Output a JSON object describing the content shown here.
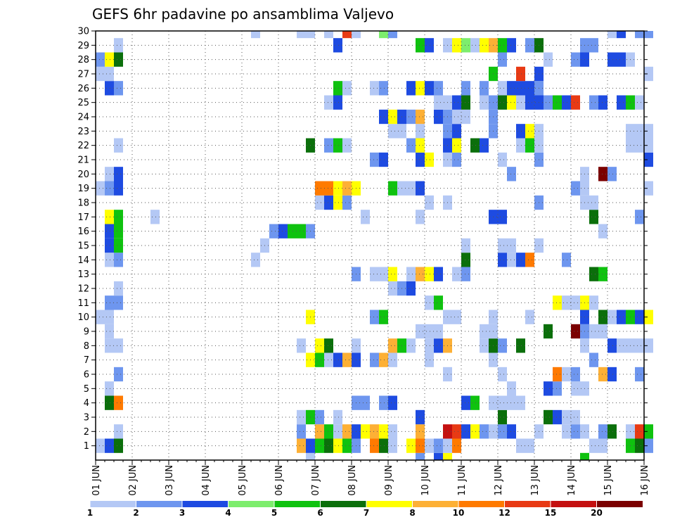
{
  "chart_data": {
    "type": "heatmap",
    "title": "GEFS 6hr padavine po ansamblima Valjevo",
    "xlabel": "",
    "ylabel": "",
    "y_members": [
      1,
      30
    ],
    "y_ticks": [
      "1",
      "2",
      "3",
      "4",
      "5",
      "6",
      "7",
      "8",
      "9",
      "10",
      "11",
      "12",
      "13",
      "14",
      "15",
      "16",
      "17",
      "18",
      "19",
      "20",
      "21",
      "22",
      "23",
      "24",
      "25",
      "26",
      "27",
      "28",
      "29",
      "30"
    ],
    "x_ticks": [
      "01 JUN",
      "02 JUN",
      "03 JUN",
      "04 JUN",
      "05 JUN",
      "06 JUN",
      "07 JUN",
      "08 JUN",
      "09 JUN",
      "10 JUN",
      "11 JUN",
      "12 JUN",
      "13 JUN",
      "14 JUN",
      "15 JUN",
      "16 JUN"
    ],
    "time_steps": 61,
    "steps_per_day": 4,
    "grid": true,
    "legend": {
      "position": "bottom",
      "labels": [
        "1",
        "2",
        "3",
        "4",
        "5",
        "6",
        "7",
        "8",
        "10",
        "12",
        "15",
        "20"
      ],
      "colors": [
        "#b4c8f5",
        "#6e96ef",
        "#1e4be1",
        "#7ded6d",
        "#0fc20f",
        "#0b6f0b",
        "#ffff00",
        "#fdb035",
        "#ff7a00",
        "#e83a14",
        "#c41010",
        "#7b0000"
      ]
    },
    "cells_by_member": {
      "30": [
        [
          17,
          1
        ],
        [
          22,
          1
        ],
        [
          23,
          1
        ],
        [
          25,
          1
        ],
        [
          27,
          10
        ],
        [
          28,
          1
        ],
        [
          31,
          4
        ],
        [
          32,
          2
        ],
        [
          56,
          1
        ],
        [
          57,
          3
        ],
        [
          59,
          2
        ],
        [
          60,
          2
        ]
      ],
      "29": [
        [
          2,
          1
        ],
        [
          26,
          3
        ],
        [
          35,
          5
        ],
        [
          36,
          3
        ],
        [
          38,
          1
        ],
        [
          39,
          7
        ],
        [
          40,
          4
        ],
        [
          41,
          1
        ],
        [
          42,
          7
        ],
        [
          43,
          8
        ],
        [
          44,
          5
        ],
        [
          45,
          3
        ],
        [
          47,
          2
        ],
        [
          48,
          6
        ],
        [
          53,
          2
        ],
        [
          54,
          2
        ]
      ],
      "28": [
        [
          0,
          2
        ],
        [
          1,
          7
        ],
        [
          2,
          6
        ],
        [
          44,
          2
        ],
        [
          49,
          1
        ],
        [
          52,
          2
        ],
        [
          53,
          3
        ],
        [
          56,
          3
        ],
        [
          57,
          3
        ],
        [
          58,
          1
        ]
      ],
      "27": [
        [
          0,
          1
        ],
        [
          1,
          1
        ],
        [
          43,
          5
        ],
        [
          46,
          10
        ],
        [
          48,
          3
        ],
        [
          60,
          1
        ]
      ],
      "26": [
        [
          1,
          3
        ],
        [
          2,
          2
        ],
        [
          26,
          5
        ],
        [
          27,
          1
        ],
        [
          30,
          1
        ],
        [
          31,
          2
        ],
        [
          34,
          3
        ],
        [
          35,
          7
        ],
        [
          36,
          3
        ],
        [
          37,
          2
        ],
        [
          40,
          2
        ],
        [
          42,
          2
        ],
        [
          44,
          1
        ],
        [
          45,
          3
        ],
        [
          46,
          3
        ],
        [
          47,
          3
        ],
        [
          48,
          2
        ]
      ],
      "25": [
        [
          25,
          1
        ],
        [
          26,
          3
        ],
        [
          37,
          1
        ],
        [
          38,
          1
        ],
        [
          39,
          3
        ],
        [
          40,
          6
        ],
        [
          42,
          1
        ],
        [
          43,
          2
        ],
        [
          44,
          6
        ],
        [
          45,
          7
        ],
        [
          46,
          1
        ],
        [
          47,
          3
        ],
        [
          48,
          3
        ],
        [
          49,
          2
        ],
        [
          50,
          5
        ],
        [
          51,
          3
        ],
        [
          52,
          10
        ],
        [
          54,
          2
        ],
        [
          55,
          3
        ],
        [
          57,
          3
        ],
        [
          58,
          5
        ],
        [
          59,
          1
        ]
      ],
      "24": [
        [
          31,
          3
        ],
        [
          32,
          7
        ],
        [
          33,
          3
        ],
        [
          34,
          2
        ],
        [
          35,
          8
        ],
        [
          37,
          3
        ],
        [
          38,
          2
        ],
        [
          39,
          1
        ],
        [
          40,
          1
        ],
        [
          43,
          2
        ]
      ],
      "23": [
        [
          32,
          1
        ],
        [
          33,
          1
        ],
        [
          35,
          1
        ],
        [
          38,
          2
        ],
        [
          39,
          3
        ],
        [
          43,
          2
        ],
        [
          46,
          3
        ],
        [
          47,
          7
        ],
        [
          48,
          1
        ],
        [
          58,
          1
        ],
        [
          59,
          1
        ],
        [
          60,
          1
        ]
      ],
      "22": [
        [
          2,
          1
        ],
        [
          23,
          6
        ],
        [
          25,
          2
        ],
        [
          26,
          5
        ],
        [
          27,
          1
        ],
        [
          34,
          2
        ],
        [
          35,
          7
        ],
        [
          38,
          3
        ],
        [
          39,
          7
        ],
        [
          41,
          6
        ],
        [
          42,
          3
        ],
        [
          46,
          1
        ],
        [
          47,
          5
        ],
        [
          48,
          1
        ],
        [
          58,
          1
        ],
        [
          59,
          1
        ],
        [
          60,
          1
        ]
      ],
      "21": [
        [
          30,
          2
        ],
        [
          31,
          3
        ],
        [
          35,
          3
        ],
        [
          36,
          7
        ],
        [
          38,
          1
        ],
        [
          39,
          2
        ],
        [
          44,
          1
        ],
        [
          48,
          2
        ],
        [
          60,
          3
        ]
      ],
      "20": [
        [
          1,
          1
        ],
        [
          2,
          3
        ],
        [
          45,
          2
        ],
        [
          53,
          1
        ],
        [
          55,
          12
        ],
        [
          56,
          2
        ]
      ],
      "19": [
        [
          0,
          1
        ],
        [
          1,
          2
        ],
        [
          2,
          3
        ],
        [
          24,
          9
        ],
        [
          25,
          9
        ],
        [
          26,
          7
        ],
        [
          27,
          8
        ],
        [
          28,
          7
        ],
        [
          32,
          5
        ],
        [
          33,
          1
        ],
        [
          34,
          1
        ],
        [
          35,
          3
        ],
        [
          52,
          2
        ],
        [
          53,
          1
        ],
        [
          60,
          1
        ]
      ],
      "18": [
        [
          24,
          1
        ],
        [
          25,
          3
        ],
        [
          26,
          7
        ],
        [
          27,
          2
        ],
        [
          36,
          1
        ],
        [
          38,
          1
        ],
        [
          48,
          2
        ],
        [
          53,
          1
        ],
        [
          54,
          1
        ]
      ],
      "17": [
        [
          1,
          7
        ],
        [
          2,
          5
        ],
        [
          6,
          1
        ],
        [
          29,
          1
        ],
        [
          35,
          1
        ],
        [
          43,
          3
        ],
        [
          44,
          3
        ],
        [
          54,
          6
        ],
        [
          59,
          2
        ]
      ],
      "16": [
        [
          1,
          3
        ],
        [
          2,
          5
        ],
        [
          19,
          2
        ],
        [
          20,
          3
        ],
        [
          21,
          5
        ],
        [
          22,
          5
        ],
        [
          23,
          2
        ],
        [
          55,
          1
        ]
      ],
      "15": [
        [
          1,
          3
        ],
        [
          2,
          5
        ],
        [
          18,
          1
        ],
        [
          40,
          1
        ],
        [
          44,
          1
        ],
        [
          45,
          1
        ],
        [
          48,
          1
        ]
      ],
      "14": [
        [
          1,
          1
        ],
        [
          2,
          2
        ],
        [
          17,
          1
        ],
        [
          40,
          6
        ],
        [
          44,
          3
        ],
        [
          45,
          1
        ],
        [
          46,
          3
        ],
        [
          47,
          9
        ],
        [
          51,
          2
        ]
      ],
      "13": [
        [
          28,
          2
        ],
        [
          30,
          1
        ],
        [
          31,
          1
        ],
        [
          32,
          7
        ],
        [
          34,
          1
        ],
        [
          35,
          8
        ],
        [
          36,
          7
        ],
        [
          37,
          3
        ],
        [
          39,
          1
        ],
        [
          40,
          2
        ],
        [
          54,
          6
        ],
        [
          55,
          5
        ]
      ],
      "12": [
        [
          2,
          1
        ],
        [
          32,
          1
        ],
        [
          33,
          2
        ],
        [
          34,
          3
        ]
      ],
      "11": [
        [
          1,
          2
        ],
        [
          2,
          2
        ],
        [
          36,
          1
        ],
        [
          37,
          5
        ],
        [
          50,
          7
        ],
        [
          51,
          1
        ],
        [
          52,
          1
        ],
        [
          53,
          7
        ],
        [
          54,
          1
        ]
      ],
      "10": [
        [
          0,
          1
        ],
        [
          1,
          1
        ],
        [
          23,
          7
        ],
        [
          30,
          2
        ],
        [
          31,
          5
        ],
        [
          38,
          1
        ],
        [
          39,
          1
        ],
        [
          43,
          1
        ],
        [
          47,
          1
        ],
        [
          53,
          3
        ],
        [
          55,
          6
        ],
        [
          56,
          1
        ],
        [
          57,
          3
        ],
        [
          58,
          5
        ],
        [
          59,
          3
        ],
        [
          60,
          7
        ]
      ],
      "9": [
        [
          1,
          1
        ],
        [
          35,
          1
        ],
        [
          36,
          1
        ],
        [
          37,
          1
        ],
        [
          42,
          1
        ],
        [
          43,
          1
        ],
        [
          49,
          6
        ],
        [
          52,
          12
        ],
        [
          53,
          2
        ],
        [
          54,
          1
        ],
        [
          55,
          1
        ]
      ],
      "8": [
        [
          1,
          1
        ],
        [
          2,
          1
        ],
        [
          22,
          1
        ],
        [
          24,
          7
        ],
        [
          25,
          6
        ],
        [
          28,
          1
        ],
        [
          32,
          8
        ],
        [
          33,
          5
        ],
        [
          34,
          1
        ],
        [
          36,
          1
        ],
        [
          37,
          3
        ],
        [
          38,
          8
        ],
        [
          42,
          1
        ],
        [
          43,
          6
        ],
        [
          44,
          2
        ],
        [
          46,
          6
        ],
        [
          53,
          1
        ],
        [
          56,
          3
        ],
        [
          57,
          1
        ],
        [
          58,
          1
        ],
        [
          59,
          1
        ],
        [
          60,
          1
        ]
      ],
      "7": [
        [
          23,
          7
        ],
        [
          24,
          5
        ],
        [
          25,
          1
        ],
        [
          26,
          3
        ],
        [
          27,
          8
        ],
        [
          28,
          3
        ],
        [
          30,
          2
        ],
        [
          31,
          8
        ],
        [
          32,
          1
        ],
        [
          36,
          1
        ],
        [
          43,
          1
        ],
        [
          54,
          2
        ]
      ],
      "6": [
        [
          2,
          2
        ],
        [
          38,
          1
        ],
        [
          44,
          1
        ],
        [
          50,
          9
        ],
        [
          51,
          1
        ],
        [
          52,
          2
        ],
        [
          55,
          8
        ],
        [
          56,
          3
        ],
        [
          59,
          2
        ]
      ],
      "5": [
        [
          1,
          1
        ],
        [
          45,
          1
        ],
        [
          49,
          3
        ],
        [
          50,
          2
        ],
        [
          52,
          1
        ],
        [
          53,
          1
        ]
      ],
      "4": [
        [
          1,
          6
        ],
        [
          2,
          9
        ],
        [
          28,
          2
        ],
        [
          29,
          2
        ],
        [
          31,
          2
        ],
        [
          32,
          3
        ],
        [
          40,
          3
        ],
        [
          41,
          5
        ],
        [
          43,
          1
        ],
        [
          44,
          1
        ],
        [
          45,
          1
        ],
        [
          46,
          1
        ]
      ],
      "3": [
        [
          22,
          1
        ],
        [
          23,
          5
        ],
        [
          24,
          2
        ],
        [
          26,
          1
        ],
        [
          35,
          3
        ],
        [
          44,
          6
        ],
        [
          49,
          6
        ],
        [
          50,
          3
        ],
        [
          51,
          1
        ],
        [
          52,
          1
        ]
      ],
      "2": [
        [
          2,
          1
        ],
        [
          22,
          2
        ],
        [
          24,
          8
        ],
        [
          25,
          5
        ],
        [
          26,
          1
        ],
        [
          27,
          8
        ],
        [
          28,
          3
        ],
        [
          29,
          7
        ],
        [
          30,
          8
        ],
        [
          31,
          7
        ],
        [
          32,
          1
        ],
        [
          35,
          8
        ],
        [
          38,
          11
        ],
        [
          39,
          10
        ],
        [
          40,
          3
        ],
        [
          41,
          7
        ],
        [
          42,
          2
        ],
        [
          43,
          1
        ],
        [
          44,
          2
        ],
        [
          45,
          3
        ],
        [
          48,
          1
        ],
        [
          51,
          1
        ],
        [
          52,
          2
        ],
        [
          53,
          1
        ],
        [
          55,
          2
        ],
        [
          56,
          6
        ],
        [
          58,
          1
        ],
        [
          59,
          10
        ],
        [
          60,
          5
        ]
      ],
      "1": [
        [
          0,
          1
        ],
        [
          1,
          3
        ],
        [
          2,
          6
        ],
        [
          22,
          8
        ],
        [
          23,
          3
        ],
        [
          24,
          5
        ],
        [
          25,
          6
        ],
        [
          26,
          7
        ],
        [
          27,
          5
        ],
        [
          28,
          2
        ],
        [
          30,
          9
        ],
        [
          31,
          6
        ],
        [
          32,
          1
        ],
        [
          34,
          7
        ],
        [
          35,
          9
        ],
        [
          36,
          1
        ],
        [
          37,
          2
        ],
        [
          38,
          1
        ],
        [
          39,
          9
        ],
        [
          46,
          1
        ],
        [
          47,
          1
        ],
        [
          54,
          1
        ],
        [
          55,
          1
        ],
        [
          58,
          5
        ],
        [
          59,
          6
        ],
        [
          60,
          2
        ]
      ],
      "0": [
        [
          23,
          1
        ],
        [
          35,
          2
        ],
        [
          37,
          3
        ],
        [
          38,
          7
        ],
        [
          53,
          5
        ]
      ]
    }
  }
}
